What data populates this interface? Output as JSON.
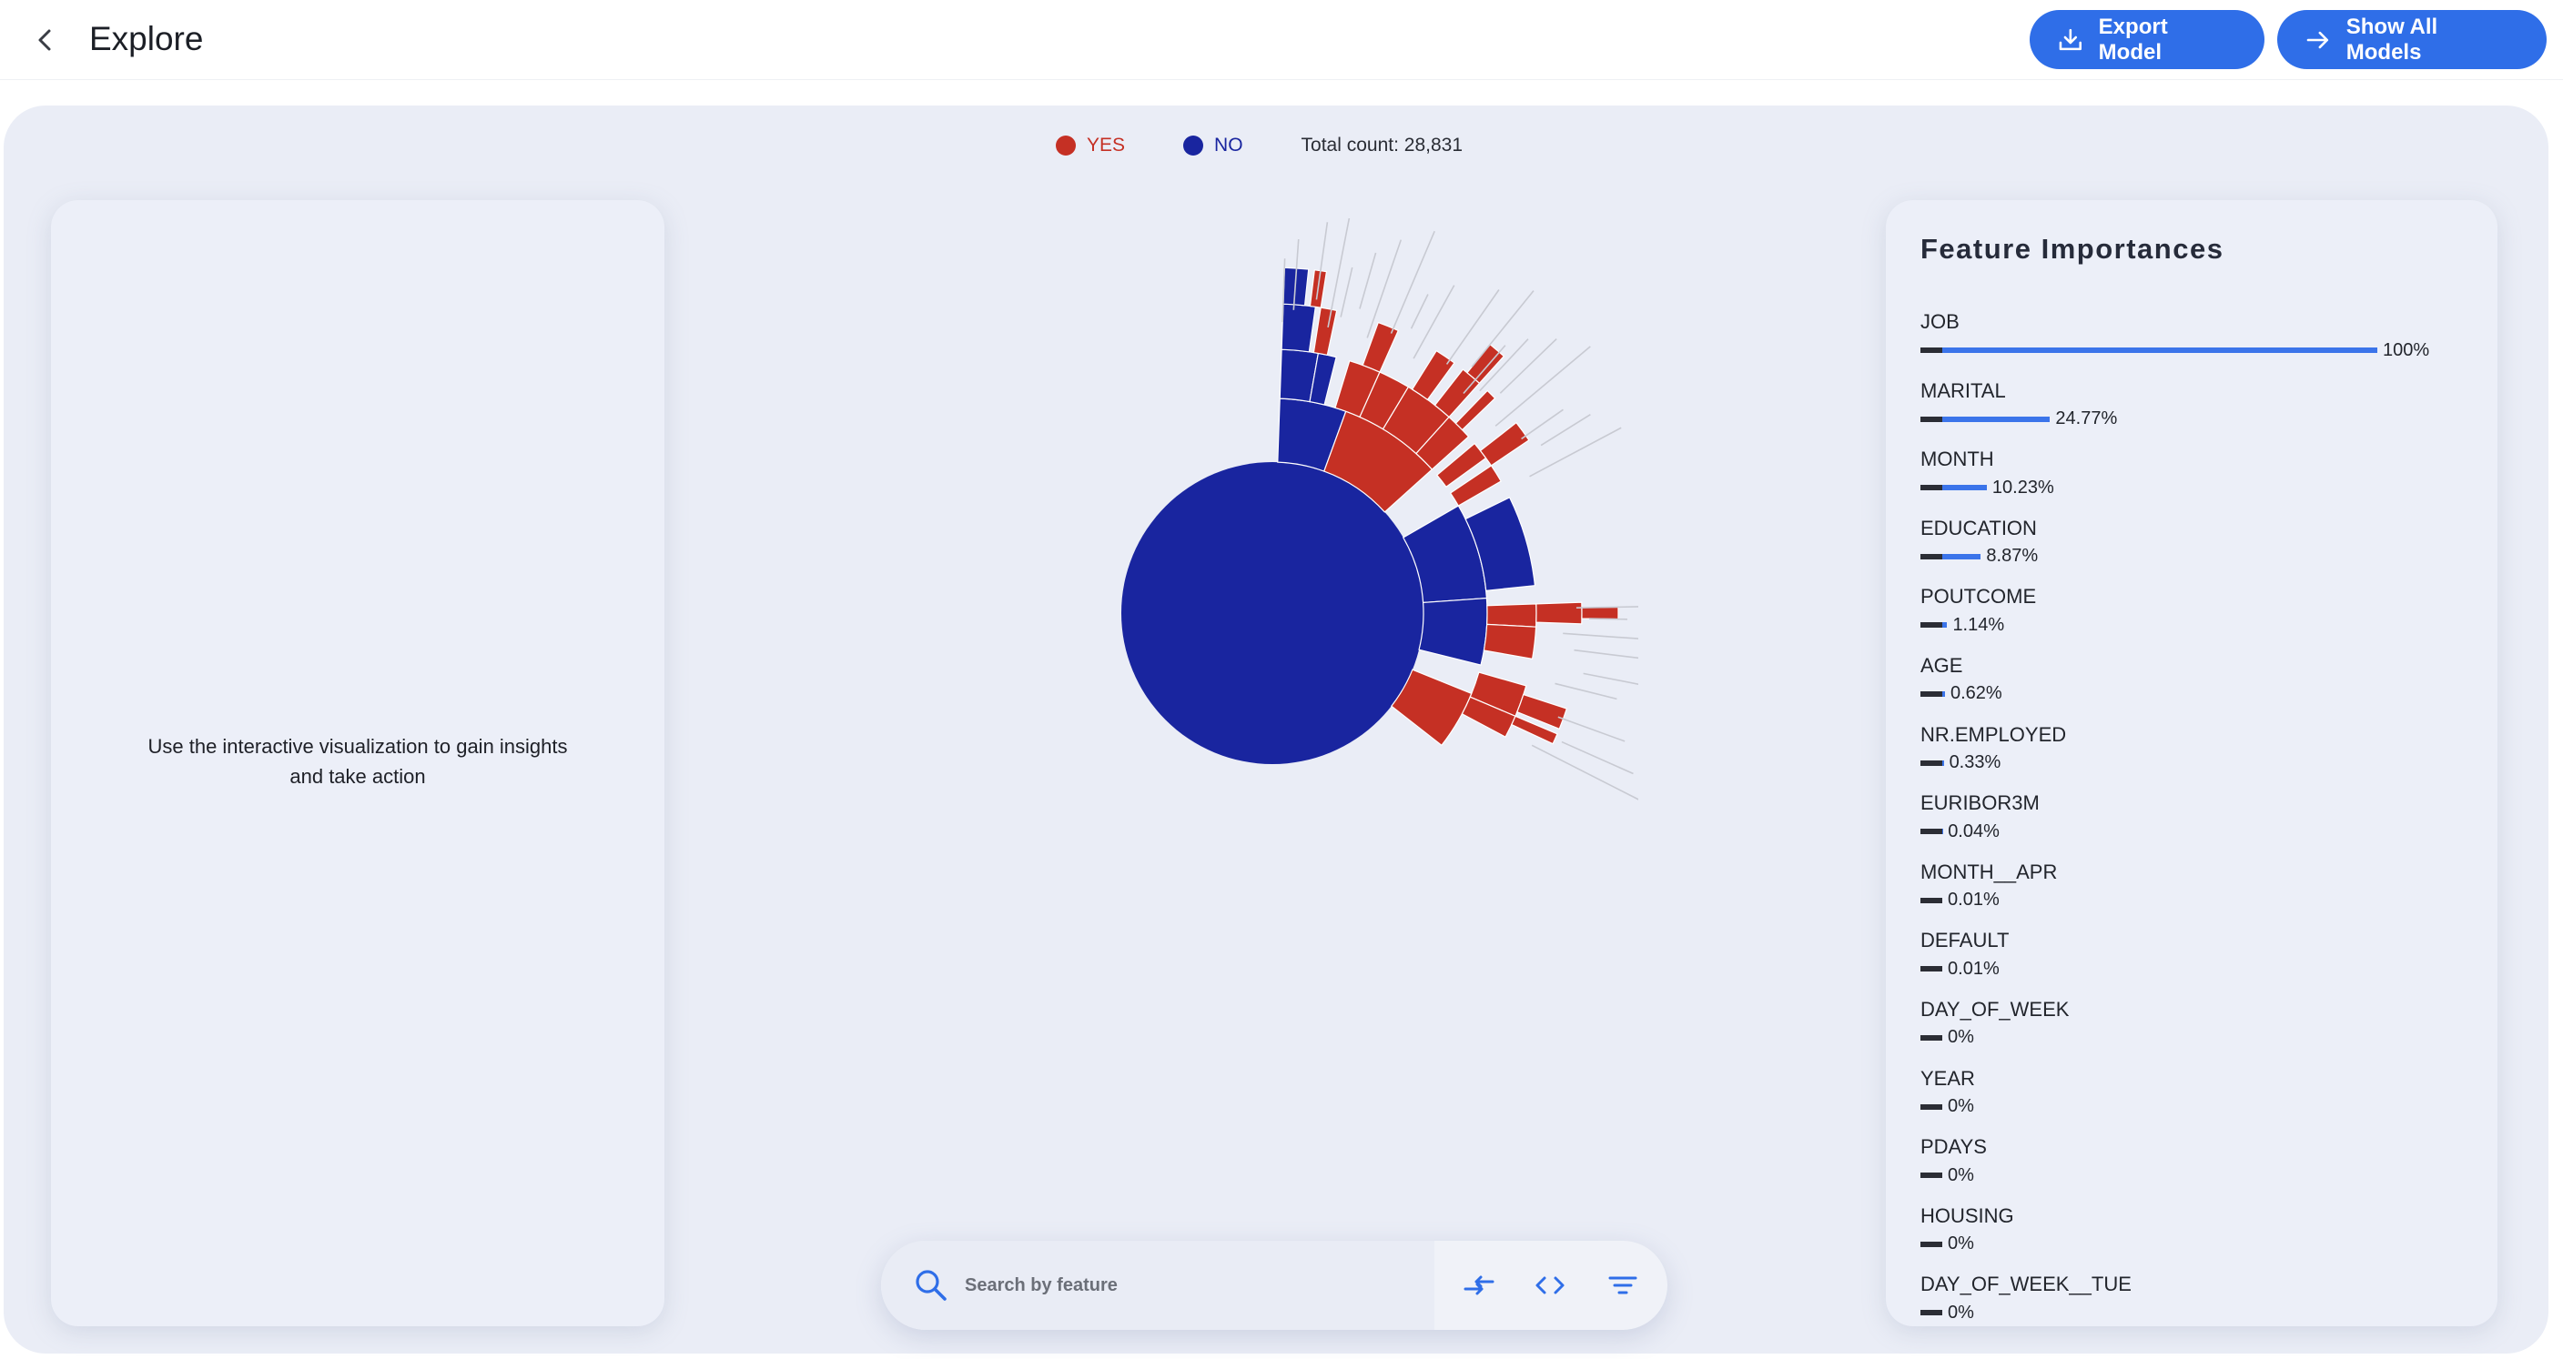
{
  "header": {
    "title": "Explore",
    "export_label": "Export Model",
    "show_all_label": "Show All Models",
    "back_icon": "chevron-left-icon",
    "export_icon": "download-icon",
    "show_all_icon": "arrow-right-icon"
  },
  "legend": {
    "yes_label": "YES",
    "no_label": "NO",
    "yes_color": "#c53024",
    "no_color": "#19259f",
    "total_text": "Total count: 28,831"
  },
  "left_panel": {
    "message": "Use the interactive visualization to gain insights and take action"
  },
  "feature_importances": {
    "title": "Feature Importances",
    "items": [
      {
        "name": "JOB",
        "value_text": "100%",
        "value": 100
      },
      {
        "name": "MARITAL",
        "value_text": "24.77%",
        "value": 24.77
      },
      {
        "name": "MONTH",
        "value_text": "10.23%",
        "value": 10.23
      },
      {
        "name": "EDUCATION",
        "value_text": "8.87%",
        "value": 8.87
      },
      {
        "name": "POUTCOME",
        "value_text": "1.14%",
        "value": 1.14
      },
      {
        "name": "AGE",
        "value_text": "0.62%",
        "value": 0.62
      },
      {
        "name": "NR.EMPLOYED",
        "value_text": "0.33%",
        "value": 0.33
      },
      {
        "name": "EURIBOR3M",
        "value_text": "0.04%",
        "value": 0.04
      },
      {
        "name": "MONTH__APR",
        "value_text": "0.01%",
        "value": 0.01
      },
      {
        "name": "DEFAULT",
        "value_text": "0.01%",
        "value": 0.01
      },
      {
        "name": "DAY_OF_WEEK",
        "value_text": "0%",
        "value": 0
      },
      {
        "name": "YEAR",
        "value_text": "0%",
        "value": 0
      },
      {
        "name": "PDAYS",
        "value_text": "0%",
        "value": 0
      },
      {
        "name": "HOUSING",
        "value_text": "0%",
        "value": 0
      },
      {
        "name": "DAY_OF_WEEK__TUE",
        "value_text": "0%",
        "value": 0
      }
    ]
  },
  "search": {
    "placeholder": "Search by feature",
    "value": ""
  },
  "toolbar": {
    "icons": [
      "swap-arrows-icon",
      "code-icon",
      "filter-icon"
    ]
  }
}
